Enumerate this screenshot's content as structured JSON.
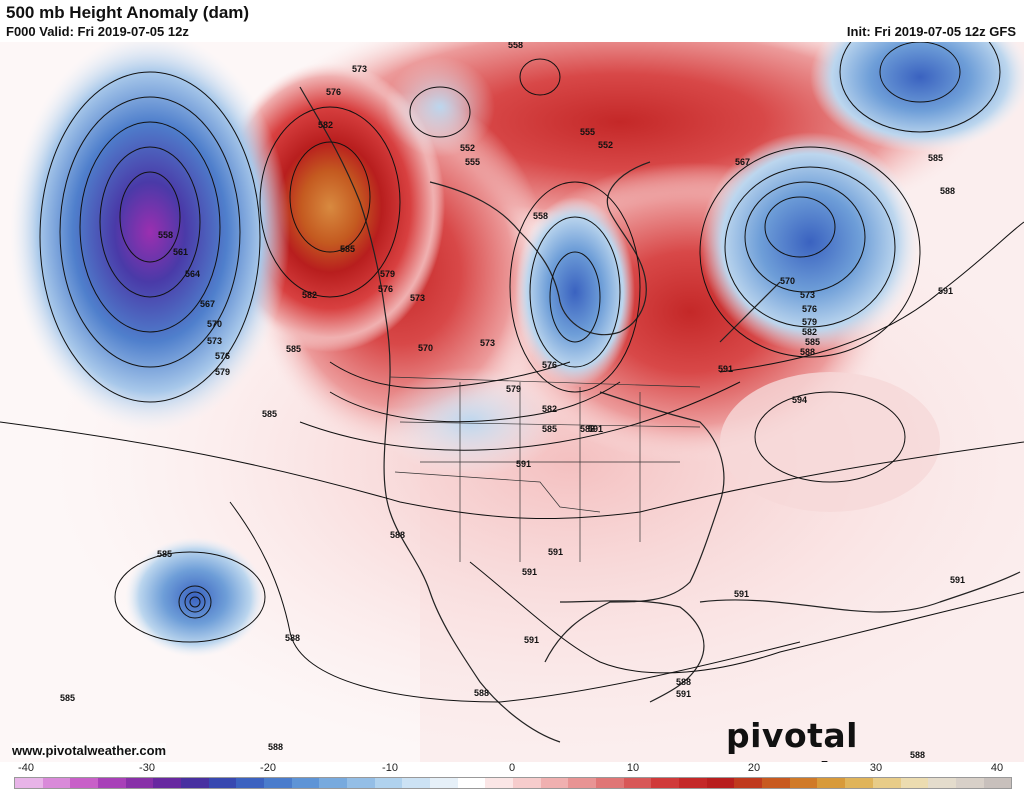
{
  "header": {
    "title": "500 mb Height Anomaly (dam)",
    "valid": "F000 Valid: Fri 2019-07-05 12z",
    "init": "Init: Fri 2019-07-05 12z GFS"
  },
  "map": {
    "contour_labels": [
      "558",
      "552",
      "555",
      "552",
      "555",
      "558",
      "573",
      "576",
      "582",
      "585",
      "579",
      "576",
      "573",
      "570",
      "573",
      "576",
      "579",
      "582",
      "585",
      "588",
      "591",
      "594",
      "588",
      "585",
      "591",
      "570",
      "567",
      "573",
      "576",
      "579",
      "582",
      "585",
      "588",
      "591",
      "591",
      "561",
      "564",
      "567",
      "570",
      "573",
      "576",
      "579",
      "558",
      "582",
      "585",
      "585",
      "588",
      "588",
      "585",
      "585",
      "588",
      "588",
      "591",
      "591",
      "591",
      "591",
      "591",
      "588",
      "588",
      "591"
    ],
    "anomaly_features": [
      {
        "kind": "negative",
        "name": "pacific-low"
      },
      {
        "kind": "positive",
        "name": "alaska-ridge"
      },
      {
        "kind": "negative",
        "name": "hudson-bay-trough"
      },
      {
        "kind": "negative",
        "name": "north-atlantic-low"
      },
      {
        "kind": "positive",
        "name": "canada-ridge"
      }
    ]
  },
  "footer": {
    "url": "www.pivotalweather.com",
    "brand": "pivotal weather"
  },
  "colorbar": {
    "ticks": [
      "-40",
      "-30",
      "-20",
      "-10",
      "0",
      "10",
      "20",
      "30",
      "40"
    ],
    "colors": [
      "#e8b4e8",
      "#d98ad9",
      "#c860c8",
      "#a840b8",
      "#8830a8",
      "#6828a0",
      "#4830a0",
      "#3848b0",
      "#3c62c0",
      "#4a7ccc",
      "#5e94d6",
      "#78aade",
      "#94bee6",
      "#b0d2ee",
      "#cce2f4",
      "#e6f0f8",
      "#ffffff",
      "#fbe6e6",
      "#f6cccc",
      "#f0b0b0",
      "#e89494",
      "#e07676",
      "#d85858",
      "#d03a3a",
      "#c42828",
      "#b81e1e",
      "#c03a1e",
      "#c85a20",
      "#d07a28",
      "#d89a3a",
      "#e0b45a",
      "#e8cc88",
      "#ecdcb0",
      "#e4dccc",
      "#d8d0c8",
      "#c8c0bc"
    ]
  }
}
